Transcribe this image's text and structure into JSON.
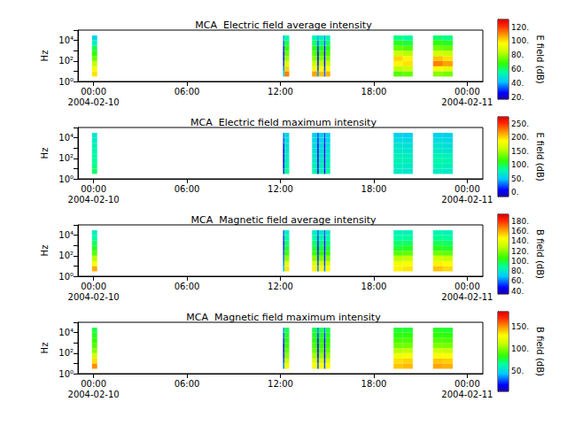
{
  "chart_data": [
    {
      "type": "heatmap",
      "title": "MCA  Electric field average intensity",
      "ylabel": "Hz",
      "log": "y",
      "xlim": [
        "2004-02-09 23:00",
        "2004-02-11 01:00"
      ],
      "xticks": [
        {
          "value": "2004-02-10 00:00",
          "label": "00:00\n2004-02-10"
        },
        {
          "value": "2004-02-10 06:00",
          "label": "06:00"
        },
        {
          "value": "2004-02-10 12:00",
          "label": "12:00"
        },
        {
          "value": "2004-02-10 18:00",
          "label": "18:00"
        },
        {
          "value": "2004-02-11 00:00",
          "label": "00:00\n2004-02-11"
        }
      ],
      "ylim": [
        1,
        100000
      ],
      "yticks": [
        {
          "value": 1,
          "label": "10⁰"
        },
        {
          "value": 100,
          "label": "10²"
        },
        {
          "value": 10000,
          "label": "10⁴"
        }
      ],
      "y": [
        3,
        10,
        30,
        100,
        300,
        1000,
        3000,
        10000,
        30000
      ],
      "x": [
        [
          "2004-02-09 23:54",
          "2004-02-10 00:14"
        ],
        [
          "2004-02-10 12:10",
          "2004-02-10 12:16"
        ],
        [
          "2004-02-10 12:16",
          "2004-02-10 12:34"
        ],
        [
          "2004-02-10 14:02",
          "2004-02-10 14:22"
        ],
        [
          "2004-02-10 14:22",
          "2004-02-10 14:28"
        ],
        [
          "2004-02-10 14:28",
          "2004-02-10 14:48"
        ],
        [
          "2004-02-10 14:48",
          "2004-02-10 14:54"
        ],
        [
          "2004-02-10 14:54",
          "2004-02-10 15:12"
        ],
        [
          "2004-02-10 19:16",
          "2004-02-10 19:52"
        ],
        [
          "2004-02-10 19:52",
          "2004-02-10 20:30"
        ],
        [
          "2004-02-10 21:48",
          "2004-02-10 22:26"
        ],
        [
          "2004-02-10 22:26",
          "2004-02-10 23:04"
        ]
      ],
      "values": [
        [
          100,
          95,
          85,
          75,
          68,
          62,
          52,
          45
        ],
        [
          45,
          38,
          32,
          28,
          28,
          30,
          35,
          40
        ],
        [
          112,
          102,
          90,
          80,
          74,
          68,
          62,
          55
        ],
        [
          108,
          98,
          86,
          78,
          72,
          66,
          60,
          54
        ],
        [
          38,
          32,
          28,
          25,
          26,
          30,
          34,
          40
        ],
        [
          104,
          96,
          85,
          77,
          71,
          65,
          58,
          52
        ],
        [
          34,
          30,
          26,
          24,
          25,
          28,
          33,
          38
        ],
        [
          106,
          97,
          86,
          78,
          72,
          66,
          60,
          54
        ],
        [
          72,
          84,
          98,
          102,
          86,
          74,
          66,
          58
        ],
        [
          74,
          86,
          100,
          98,
          84,
          72,
          64,
          56
        ],
        [
          78,
          96,
          112,
          104,
          88,
          76,
          68,
          60
        ],
        [
          76,
          92,
          108,
          100,
          86,
          74,
          66,
          58
        ]
      ],
      "colorbar": {
        "label": "E field (dB)",
        "range": [
          17,
          131
        ],
        "ticks": [
          {
            "value": 20,
            "label": "20."
          },
          {
            "value": 40,
            "label": "40."
          },
          {
            "value": 60,
            "label": "60."
          },
          {
            "value": 80,
            "label": "80."
          },
          {
            "value": 100,
            "label": "100."
          },
          {
            "value": 120,
            "label": "120."
          }
        ]
      }
    },
    {
      "type": "heatmap",
      "title": "MCA  Electric field maximum intensity",
      "ylabel": "Hz",
      "log": "y",
      "xlim": [
        "2004-02-09 23:00",
        "2004-02-11 01:00"
      ],
      "xticks": [
        {
          "value": "2004-02-10 00:00",
          "label": "00:00\n2004-02-10"
        },
        {
          "value": "2004-02-10 06:00",
          "label": "06:00"
        },
        {
          "value": "2004-02-10 12:00",
          "label": "12:00"
        },
        {
          "value": "2004-02-10 18:00",
          "label": "18:00"
        },
        {
          "value": "2004-02-11 00:00",
          "label": "00:00\n2004-02-11"
        }
      ],
      "ylim": [
        1,
        100000
      ],
      "yticks": [
        {
          "value": 1,
          "label": "10⁰"
        },
        {
          "value": 100,
          "label": "10²"
        },
        {
          "value": 10000,
          "label": "10⁴"
        }
      ],
      "y": [
        3,
        10,
        30,
        100,
        300,
        1000,
        3000,
        10000,
        30000
      ],
      "x": [
        [
          "2004-02-09 23:54",
          "2004-02-10 00:14"
        ],
        [
          "2004-02-10 12:10",
          "2004-02-10 12:16"
        ],
        [
          "2004-02-10 12:16",
          "2004-02-10 12:34"
        ],
        [
          "2004-02-10 14:02",
          "2004-02-10 14:22"
        ],
        [
          "2004-02-10 14:22",
          "2004-02-10 14:28"
        ],
        [
          "2004-02-10 14:28",
          "2004-02-10 14:48"
        ],
        [
          "2004-02-10 14:48",
          "2004-02-10 14:54"
        ],
        [
          "2004-02-10 14:54",
          "2004-02-10 15:12"
        ],
        [
          "2004-02-10 19:16",
          "2004-02-10 19:52"
        ],
        [
          "2004-02-10 19:52",
          "2004-02-10 20:30"
        ],
        [
          "2004-02-10 21:48",
          "2004-02-10 22:26"
        ],
        [
          "2004-02-10 22:26",
          "2004-02-10 23:04"
        ]
      ],
      "values": [
        [
          95,
          90,
          85,
          82,
          78,
          76,
          72,
          68
        ],
        [
          20,
          12,
          10,
          8,
          10,
          15,
          25,
          35
        ],
        [
          85,
          80,
          75,
          70,
          68,
          65,
          62,
          58
        ],
        [
          80,
          75,
          72,
          68,
          65,
          62,
          60,
          55
        ],
        [
          10,
          5,
          3,
          2,
          4,
          8,
          15,
          25
        ],
        [
          78,
          74,
          70,
          66,
          64,
          60,
          58,
          54
        ],
        [
          8,
          4,
          2,
          1,
          3,
          6,
          12,
          22
        ],
        [
          80,
          76,
          72,
          68,
          65,
          62,
          58,
          55
        ],
        [
          70,
          72,
          75,
          74,
          70,
          66,
          62,
          55
        ],
        [
          68,
          70,
          74,
          72,
          68,
          64,
          60,
          54
        ],
        [
          72,
          76,
          80,
          76,
          70,
          66,
          62,
          56
        ],
        [
          70,
          74,
          78,
          74,
          68,
          64,
          60,
          55
        ]
      ],
      "colorbar": {
        "label": "E field (dB)",
        "range": [
          -15,
          275
        ],
        "ticks": [
          {
            "value": 0,
            "label": "0."
          },
          {
            "value": 50,
            "label": "50."
          },
          {
            "value": 100,
            "label": "100."
          },
          {
            "value": 150,
            "label": "150."
          },
          {
            "value": 200,
            "label": "200."
          },
          {
            "value": 250,
            "label": "250."
          }
        ]
      }
    },
    {
      "type": "heatmap",
      "title": "MCA  Magnetic field average intensity",
      "ylabel": "Hz",
      "log": "y",
      "xlim": [
        "2004-02-09 23:00",
        "2004-02-11 01:00"
      ],
      "xticks": [
        {
          "value": "2004-02-10 00:00",
          "label": "00:00\n2004-02-10"
        },
        {
          "value": "2004-02-10 06:00",
          "label": "06:00"
        },
        {
          "value": "2004-02-10 12:00",
          "label": "12:00"
        },
        {
          "value": "2004-02-10 18:00",
          "label": "18:00"
        },
        {
          "value": "2004-02-11 00:00",
          "label": "00:00\n2004-02-11"
        }
      ],
      "ylim": [
        1,
        100000
      ],
      "yticks": [
        {
          "value": 1,
          "label": "10⁰"
        },
        {
          "value": 100,
          "label": "10²"
        },
        {
          "value": 10000,
          "label": "10⁴"
        }
      ],
      "y": [
        3,
        10,
        30,
        100,
        300,
        1000,
        3000,
        10000,
        30000
      ],
      "x": [
        [
          "2004-02-09 23:54",
          "2004-02-10 00:14"
        ],
        [
          "2004-02-10 12:10",
          "2004-02-10 12:16"
        ],
        [
          "2004-02-10 12:16",
          "2004-02-10 12:34"
        ],
        [
          "2004-02-10 14:02",
          "2004-02-10 14:22"
        ],
        [
          "2004-02-10 14:22",
          "2004-02-10 14:28"
        ],
        [
          "2004-02-10 14:28",
          "2004-02-10 14:48"
        ],
        [
          "2004-02-10 14:48",
          "2004-02-10 14:54"
        ],
        [
          "2004-02-10 14:54",
          "2004-02-10 15:12"
        ],
        [
          "2004-02-10 19:16",
          "2004-02-10 19:52"
        ],
        [
          "2004-02-10 19:52",
          "2004-02-10 20:30"
        ],
        [
          "2004-02-10 21:48",
          "2004-02-10 22:26"
        ],
        [
          "2004-02-10 22:26",
          "2004-02-10 23:04"
        ]
      ],
      "values": [
        [
          160,
          145,
          128,
          112,
          102,
          95,
          88,
          82
        ],
        [
          70,
          64,
          60,
          56,
          54,
          52,
          55,
          60
        ],
        [
          150,
          138,
          120,
          108,
          100,
          94,
          88,
          82
        ],
        [
          148,
          136,
          120,
          108,
          100,
          94,
          88,
          82
        ],
        [
          62,
          56,
          52,
          50,
          48,
          50,
          54,
          58
        ],
        [
          145,
          134,
          118,
          106,
          98,
          92,
          86,
          80
        ],
        [
          60,
          54,
          50,
          48,
          46,
          48,
          52,
          56
        ],
        [
          146,
          135,
          119,
          107,
          99,
          93,
          87,
          81
        ],
        [
          148,
          142,
          128,
          112,
          100,
          94,
          88,
          84
        ],
        [
          150,
          144,
          130,
          114,
          102,
          95,
          89,
          84
        ],
        [
          156,
          148,
          132,
          116,
          103,
          96,
          90,
          85
        ],
        [
          152,
          145,
          130,
          114,
          101,
          95,
          89,
          84
        ]
      ],
      "colorbar": {
        "label": "B field (dB)",
        "range": [
          34,
          194
        ],
        "ticks": [
          {
            "value": 40,
            "label": "40."
          },
          {
            "value": 60,
            "label": "60."
          },
          {
            "value": 80,
            "label": "80."
          },
          {
            "value": 100,
            "label": "100."
          },
          {
            "value": 120,
            "label": "120."
          },
          {
            "value": 140,
            "label": "140."
          },
          {
            "value": 160,
            "label": "160."
          },
          {
            "value": 180,
            "label": "180."
          }
        ]
      }
    },
    {
      "type": "heatmap",
      "title": "MCA  Magnetic field maximum intensity",
      "ylabel": "Hz",
      "log": "y",
      "xlim": [
        "2004-02-09 23:00",
        "2004-02-11 01:00"
      ],
      "xticks": [
        {
          "value": "2004-02-10 00:00",
          "label": "00:00\n2004-02-10"
        },
        {
          "value": "2004-02-10 06:00",
          "label": "06:00"
        },
        {
          "value": "2004-02-10 12:00",
          "label": "12:00"
        },
        {
          "value": "2004-02-10 18:00",
          "label": "18:00"
        },
        {
          "value": "2004-02-11 00:00",
          "label": "00:00\n2004-02-11"
        }
      ],
      "ylim": [
        1,
        100000
      ],
      "yticks": [
        {
          "value": 1,
          "label": "10⁰"
        },
        {
          "value": 100,
          "label": "10²"
        },
        {
          "value": 10000,
          "label": "10⁴"
        }
      ],
      "y": [
        3,
        10,
        30,
        100,
        300,
        1000,
        3000,
        10000,
        30000
      ],
      "x": [
        [
          "2004-02-09 23:54",
          "2004-02-10 00:14"
        ],
        [
          "2004-02-10 12:10",
          "2004-02-10 12:16"
        ],
        [
          "2004-02-10 12:16",
          "2004-02-10 12:34"
        ],
        [
          "2004-02-10 14:02",
          "2004-02-10 14:22"
        ],
        [
          "2004-02-10 14:22",
          "2004-02-10 14:28"
        ],
        [
          "2004-02-10 14:28",
          "2004-02-10 14:48"
        ],
        [
          "2004-02-10 14:48",
          "2004-02-10 14:54"
        ],
        [
          "2004-02-10 14:54",
          "2004-02-10 15:12"
        ],
        [
          "2004-02-10 19:16",
          "2004-02-10 19:52"
        ],
        [
          "2004-02-10 19:52",
          "2004-02-10 20:30"
        ],
        [
          "2004-02-10 21:48",
          "2004-02-10 22:26"
        ],
        [
          "2004-02-10 22:26",
          "2004-02-10 23:04"
        ]
      ],
      "values": [
        [
          150,
          135,
          115,
          100,
          90,
          85,
          80,
          75
        ],
        [
          35,
          28,
          22,
          20,
          20,
          24,
          30,
          38
        ],
        [
          125,
          112,
          100,
          92,
          86,
          82,
          78,
          74
        ],
        [
          130,
          118,
          104,
          94,
          88,
          83,
          79,
          75
        ],
        [
          30,
          24,
          18,
          16,
          16,
          20,
          26,
          34
        ],
        [
          128,
          116,
          102,
          92,
          86,
          82,
          78,
          74
        ],
        [
          28,
          22,
          16,
          14,
          15,
          18,
          24,
          32
        ],
        [
          129,
          117,
          103,
          93,
          87,
          83,
          79,
          75
        ],
        [
          140,
          135,
          124,
          108,
          95,
          88,
          82,
          78
        ],
        [
          142,
          137,
          126,
          110,
          96,
          89,
          83,
          78
        ],
        [
          146,
          140,
          130,
          113,
          98,
          90,
          84,
          79
        ],
        [
          144,
          138,
          128,
          111,
          97,
          89,
          83,
          78
        ]
      ],
      "colorbar": {
        "label": "B field (dB)",
        "range": [
          3,
          183
        ],
        "ticks": [
          {
            "value": 50,
            "label": "50."
          },
          {
            "value": 100,
            "label": "100."
          },
          {
            "value": 150,
            "label": "150."
          }
        ]
      }
    }
  ]
}
